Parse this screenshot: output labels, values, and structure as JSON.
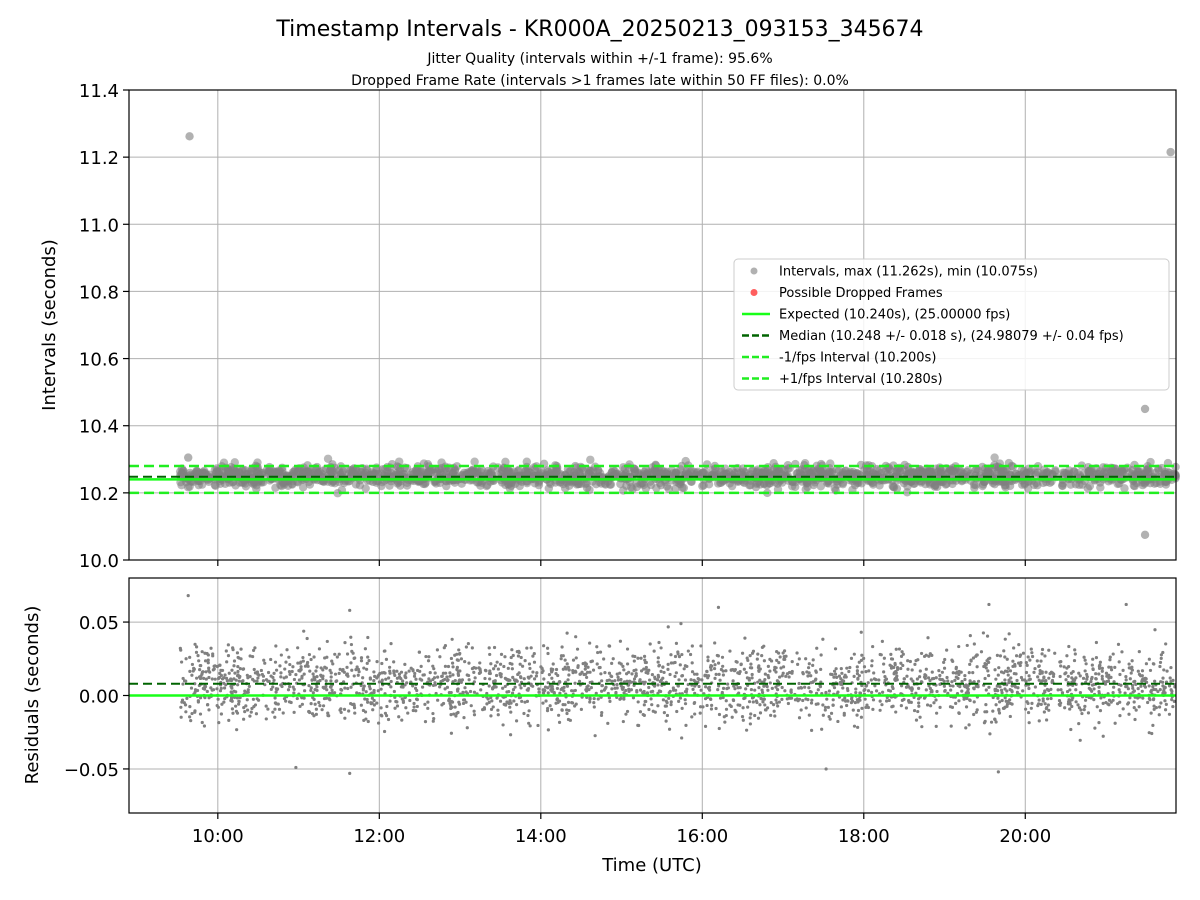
{
  "figure": {
    "title": "Timestamp Intervals - KR000A_20250213_093153_345674",
    "subtitle_1": "Jitter Quality (intervals within +/-1 frame): 95.6%",
    "subtitle_2": "Dropped Frame Rate (intervals >1 frames late within 50 FF files): 0.0%"
  },
  "colors": {
    "points": "#808080",
    "points_light": "#a9a9a9",
    "dropped": "#ff4d4d",
    "expected": "#18ff18",
    "median": "#006400",
    "fps_bounds": "#20ee20",
    "grid": "#b0b0b0",
    "axis": "#000000"
  },
  "chart_data": [
    {
      "type": "scatter",
      "panel": "intervals",
      "xlabel": "",
      "ylabel": "Intervals (seconds)",
      "xlim": [
        "08:54",
        "21:52"
      ],
      "ylim": [
        10.0,
        11.4
      ],
      "yticks": [
        10.0,
        10.2,
        10.4,
        10.6,
        10.8,
        11.0,
        11.2,
        11.4
      ],
      "ytick_labels": [
        "10.0",
        "10.2",
        "10.4",
        "10.6",
        "10.8",
        "11.0",
        "11.2",
        "11.4"
      ],
      "grid": true,
      "legend_position": "center-right",
      "series": [
        {
          "name": "Intervals, max (11.262s), min (10.075s)",
          "kind": "points",
          "time_range": [
            "09:32",
            "21:52"
          ],
          "band": [
            10.19,
            10.31
          ],
          "outliers": [
            {
              "x": "09:39",
              "y": 11.262
            },
            {
              "x": "21:48",
              "y": 11.215
            },
            {
              "x": "21:29",
              "y": 10.45
            },
            {
              "x": "21:29",
              "y": 10.075
            },
            {
              "x": "09:38",
              "y": 10.305
            }
          ]
        },
        {
          "name": "Possible Dropped Frames",
          "kind": "points",
          "values": []
        },
        {
          "name": "Expected (10.240s), (25.00000 fps)",
          "kind": "hline",
          "y": 10.24
        },
        {
          "name": "Median (10.248 +/- 0.018 s), (24.98079 +/- 0.04 fps)",
          "kind": "hline",
          "y": 10.248
        },
        {
          "name": "-1/fps Interval (10.200s)",
          "kind": "hline",
          "y": 10.2
        },
        {
          "name": "+1/fps Interval (10.280s)",
          "kind": "hline",
          "y": 10.28
        }
      ]
    },
    {
      "type": "scatter",
      "panel": "residuals",
      "xlabel": "Time (UTC)",
      "ylabel": "Residuals (seconds)",
      "xlim": [
        "08:54",
        "21:52"
      ],
      "ylim": [
        -0.08,
        0.08
      ],
      "yticks": [
        -0.05,
        0.0,
        0.05
      ],
      "ytick_labels": [
        "−0.05",
        "0.00",
        "0.05"
      ],
      "xticks": [
        "10:00",
        "12:00",
        "14:00",
        "16:00",
        "18:00",
        "20:00"
      ],
      "grid": true,
      "series": [
        {
          "kind": "points",
          "time_range": [
            "09:32",
            "21:52"
          ],
          "center": 0.008,
          "spread": 0.018,
          "extremes": [
            {
              "x": "09:38",
              "y": 0.068
            },
            {
              "x": "11:38",
              "y": 0.058
            },
            {
              "x": "16:12",
              "y": 0.06
            },
            {
              "x": "19:33",
              "y": 0.062
            },
            {
              "x": "21:15",
              "y": 0.062
            },
            {
              "x": "11:38",
              "y": -0.053
            },
            {
              "x": "19:40",
              "y": -0.052
            },
            {
              "x": "17:32",
              "y": -0.05
            },
            {
              "x": "10:58",
              "y": -0.049
            }
          ]
        },
        {
          "kind": "hline",
          "role": "expected",
          "y": 0.0
        },
        {
          "kind": "hline",
          "role": "median",
          "y": 0.008
        }
      ]
    }
  ]
}
